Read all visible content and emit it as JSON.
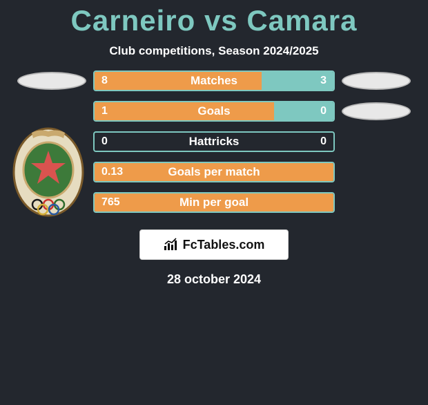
{
  "colors": {
    "background": "#23272e",
    "accent_teal": "#7ec8c0",
    "accent_orange": "#ee9b4a",
    "white": "#ffffff",
    "card_bg": "#ffffff",
    "card_border": "#cfcfcf",
    "ellipse_fill": "#e8e8e8",
    "ellipse_border": "#b8b8b8"
  },
  "title": {
    "left_name": "Carneiro",
    "vs": "vs",
    "right_name": "Camara",
    "color": "#7ec8c0",
    "fontsize": 42
  },
  "subtitle": "Club competitions, Season 2024/2025",
  "crest": {
    "outer_fill": "#e6dcc0",
    "outer_stroke": "#7a5a2a",
    "inner_fill": "#3d7a3a",
    "inner_stroke": "#c9a96e",
    "star_fill": "#d9534f",
    "crown_fill": "#c9a96e",
    "ring_colors": [
      "#1a1a1a",
      "#c9302c",
      "#2e6b2c",
      "#d4b03a",
      "#2a5aa0"
    ]
  },
  "stats": [
    {
      "label": "Matches",
      "left_val": "8",
      "right_val": "3",
      "left_pct": 70,
      "right_pct": 30,
      "show_left_badge": true,
      "show_right_badge": true
    },
    {
      "label": "Goals",
      "left_val": "1",
      "right_val": "0",
      "left_pct": 75,
      "right_pct": 25,
      "show_left_badge": false,
      "show_right_badge": true
    },
    {
      "label": "Hattricks",
      "left_val": "0",
      "right_val": "0",
      "left_pct": 0,
      "right_pct": 0,
      "show_left_badge": false,
      "show_right_badge": false
    },
    {
      "label": "Goals per match",
      "left_val": "0.13",
      "right_val": "",
      "left_pct": 100,
      "right_pct": 0,
      "show_left_badge": false,
      "show_right_badge": false
    },
    {
      "label": "Min per goal",
      "left_val": "765",
      "right_val": "",
      "left_pct": 100,
      "right_pct": 0,
      "show_left_badge": false,
      "show_right_badge": false
    }
  ],
  "footer": {
    "brand": "FcTables.com",
    "icon_color": "#000000"
  },
  "date": "28 october 2024"
}
